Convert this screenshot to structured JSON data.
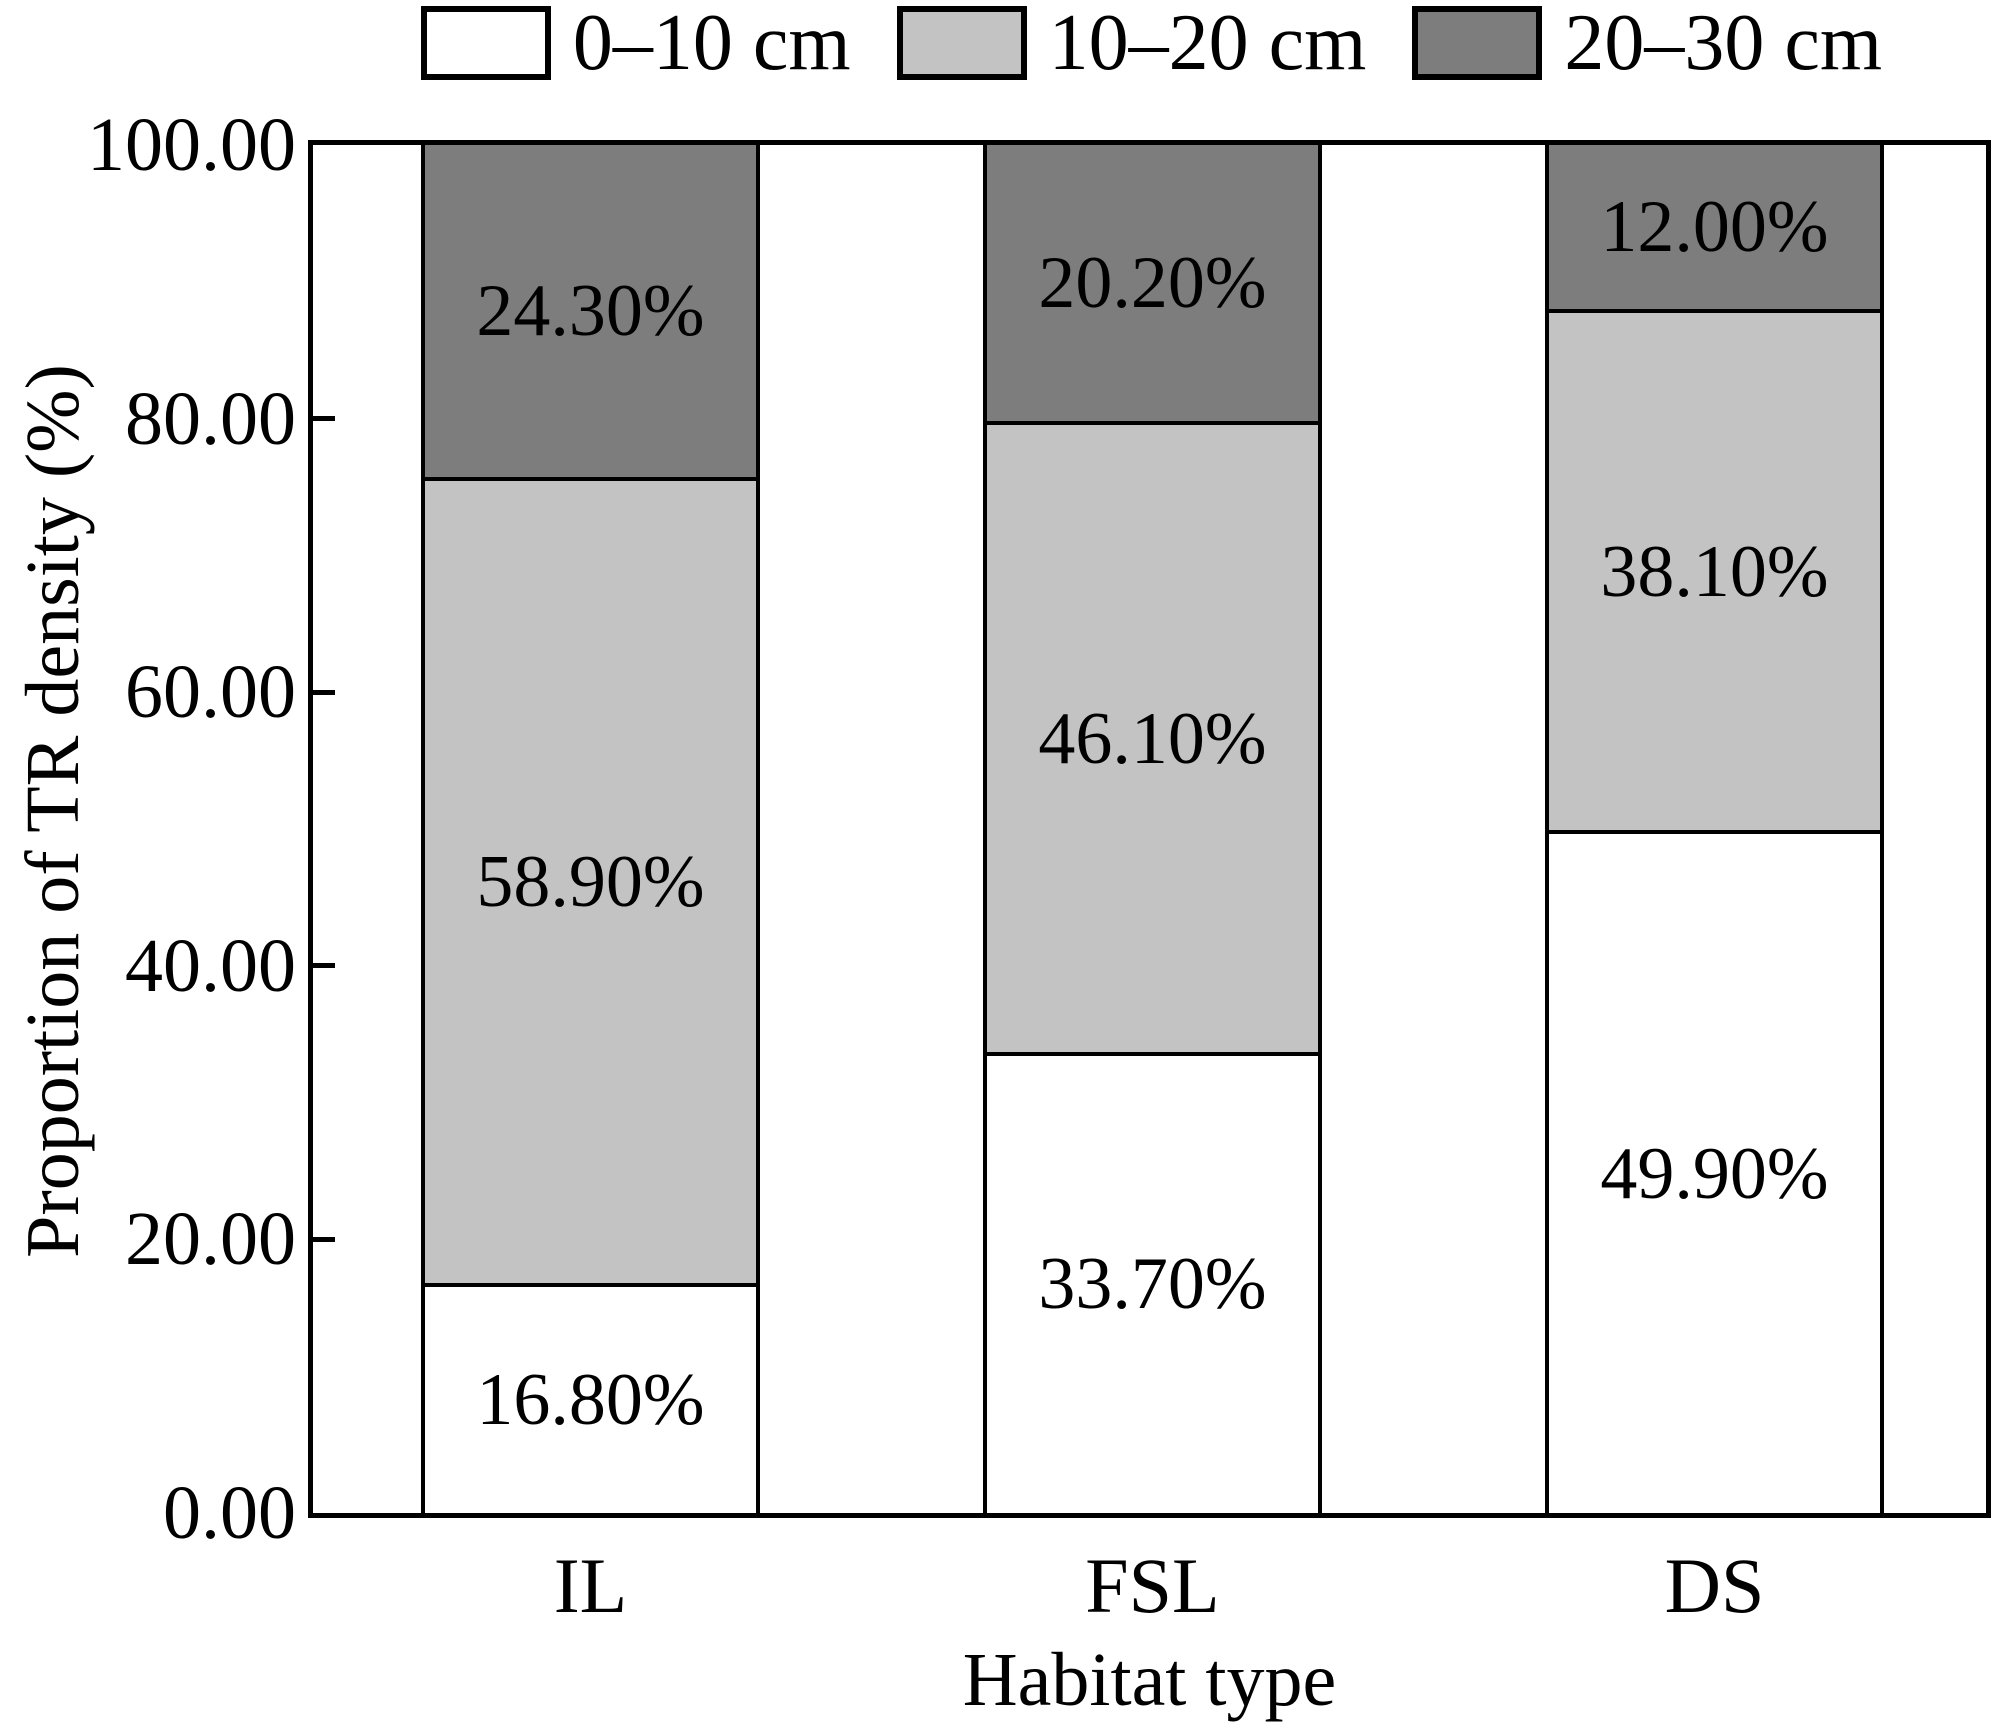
{
  "chart_data": {
    "type": "bar",
    "stacked": true,
    "orientation": "vertical",
    "xlabel": "Habitat type",
    "ylabel": "Proportion of TR density (%)",
    "ylim": [
      0,
      100
    ],
    "grid": false,
    "frame": "box",
    "legend_position": "top",
    "categories": [
      "IL",
      "FSL",
      "DS"
    ],
    "yticks": [
      {
        "value": 0,
        "label": "0.00"
      },
      {
        "value": 20,
        "label": "20.00"
      },
      {
        "value": 40,
        "label": "40.00"
      },
      {
        "value": 60,
        "label": "60.00"
      },
      {
        "value": 80,
        "label": "80.00"
      },
      {
        "value": 100,
        "label": "100.00"
      }
    ],
    "series": [
      {
        "name": "0–10 cm",
        "color": "#ffffff",
        "values": [
          16.8,
          33.7,
          49.9
        ],
        "data_labels": [
          "16.80%",
          "33.70%",
          "49.90%"
        ]
      },
      {
        "name": "10–20 cm",
        "color": "#c3c3c3",
        "values": [
          58.9,
          46.1,
          38.1
        ],
        "data_labels": [
          "58.90%",
          "46.10%",
          "38.10%"
        ]
      },
      {
        "name": "20–30 cm",
        "color": "#7d7d7d",
        "values": [
          24.3,
          20.2,
          12.0
        ],
        "data_labels": [
          "24.30%",
          "20.20%",
          "12.00%"
        ]
      }
    ],
    "outline_color": "#000000",
    "label_color": "#000000"
  }
}
